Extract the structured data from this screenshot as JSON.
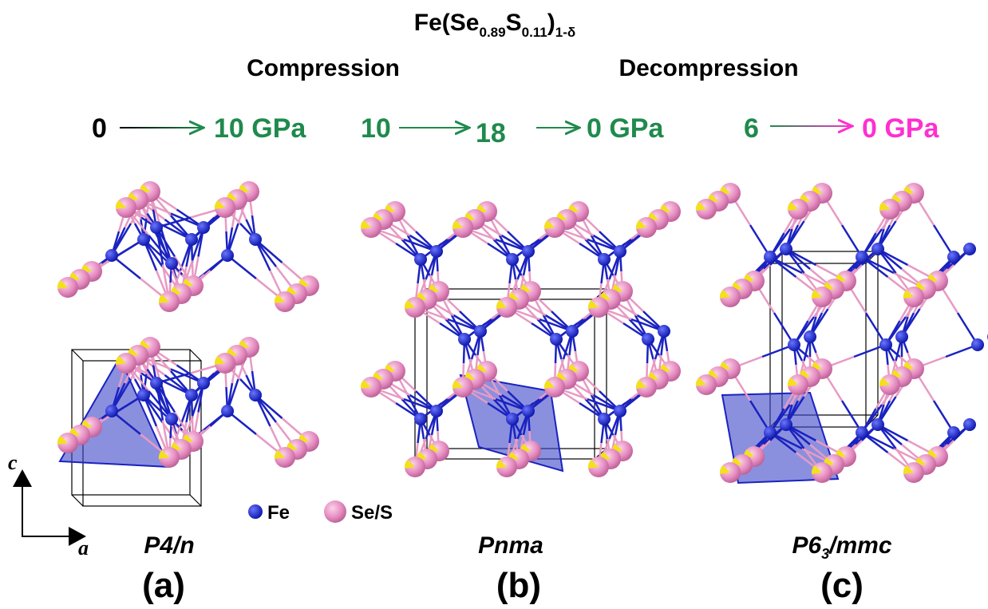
{
  "title": {
    "parts": [
      "Fe(Se",
      "0.89",
      "S",
      "0.11",
      ")",
      "1-δ"
    ]
  },
  "headers": [
    "Compression",
    "Decompression"
  ],
  "pressure_paths": [
    [
      "0",
      "10 GPa"
    ],
    [
      "10",
      "18",
      "0 GPa"
    ],
    [
      "6",
      "0 GPa"
    ]
  ],
  "legend": [
    "Fe",
    "Se/S"
  ],
  "axes": {
    "vertical": "c",
    "horizontal": "a"
  },
  "panels": [
    {
      "space_group": [
        "P4/n"
      ],
      "label": "(a)"
    },
    {
      "space_group": [
        "Pnma"
      ],
      "label": "(b)"
    },
    {
      "space_group": [
        "P6",
        "3",
        "/mmc"
      ],
      "label": "(c)"
    }
  ]
}
